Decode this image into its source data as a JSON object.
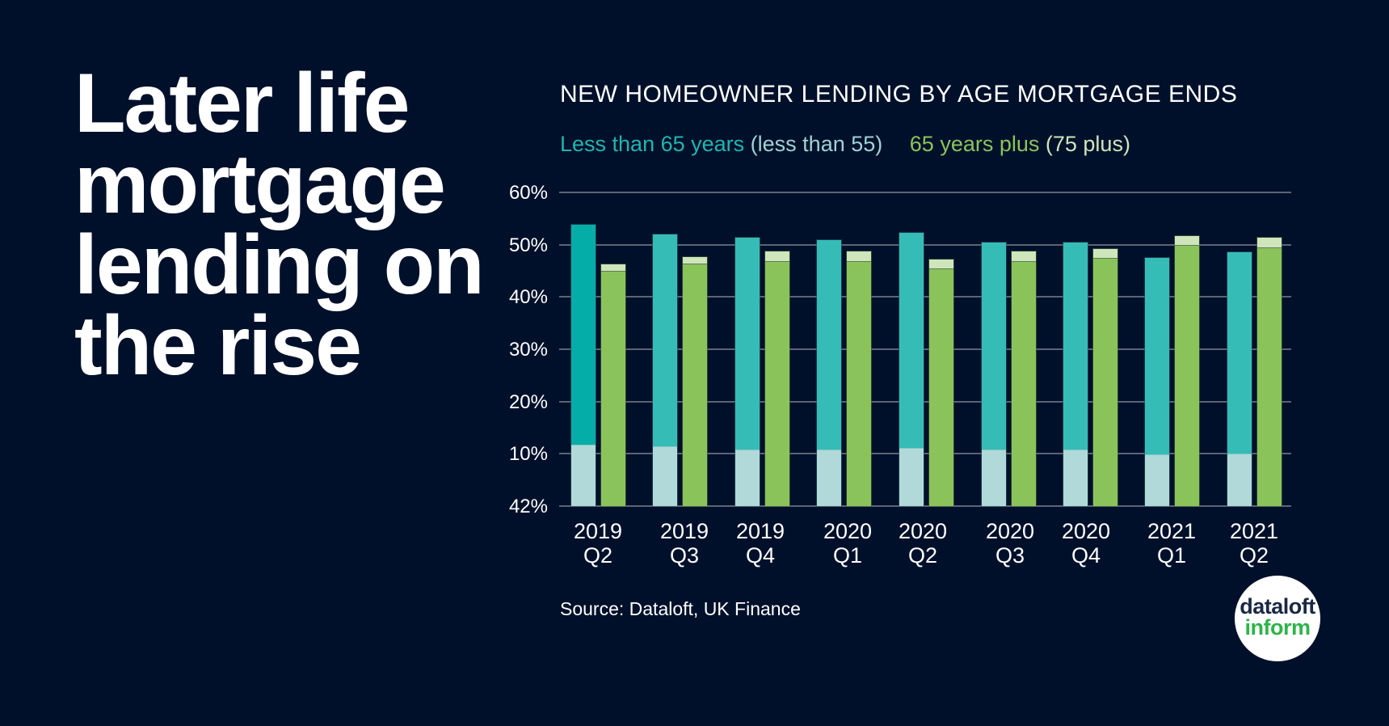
{
  "headline": {
    "lines": [
      "Later life",
      "mortgage",
      "lending on",
      "the rise"
    ]
  },
  "chart": {
    "title": "NEW HOMEOWNER LENDING BY AGE MORTGAGE ENDS",
    "legend": [
      {
        "label": "Less than 65 years",
        "color": "#20b5b0"
      },
      {
        "label": "(less than 55)",
        "color": "#9fd3d3"
      },
      {
        "label": "65 years plus",
        "color": "#8bc35b"
      },
      {
        "label": "(75 plus)",
        "color": "#cfe5bb"
      }
    ],
    "y_ticks": [
      "60%",
      "50%",
      "40%",
      "30%",
      "20%",
      "10%",
      "42%"
    ],
    "x_labels": [
      {
        "year": "2019",
        "q": "Q2"
      },
      {
        "year": "2019",
        "q": "Q3"
      },
      {
        "year": "2019",
        "q": "Q4"
      },
      {
        "year": "2020",
        "q": "Q1"
      },
      {
        "year": "2020",
        "q": "Q2"
      },
      {
        "year": "2020",
        "q": "Q3"
      },
      {
        "year": "2020",
        "q": "Q4"
      },
      {
        "year": "2021",
        "q": "Q1"
      },
      {
        "year": "2021",
        "q": "Q2"
      }
    ],
    "source": "Source: Dataloft, UK Finance"
  },
  "logo": {
    "line1": "dataloft",
    "line2": "inform"
  },
  "colors": {
    "background": "#00102a",
    "teal_first": "#05ada8",
    "teal": "#36bcb7",
    "light_teal": "#b1d9d9",
    "green": "#8bc35b",
    "light_green": "#cfe5bb",
    "grid": "#5d6375"
  },
  "chart_data": {
    "type": "bar",
    "title": "NEW HOMEOWNER LENDING BY AGE MORTGAGE ENDS",
    "xlabel": "",
    "ylabel": "",
    "ylim": [
      0,
      60
    ],
    "y_tick_labels": [
      "42%",
      "10%",
      "20%",
      "30%",
      "40%",
      "50%",
      "60%"
    ],
    "grid": true,
    "legend_position": "top",
    "stacked_note": "Paired stacked bars per quarter: teal bar = Less than 65 years (lighter bottom segment = less than 55); green bar = 65 years plus (lighter top segment = 75 plus)",
    "categories": [
      "2019 Q2",
      "2019 Q3",
      "2019 Q4",
      "2020 Q1",
      "2020 Q2",
      "2020 Q3",
      "2020 Q4",
      "2021 Q1",
      "2021 Q2"
    ],
    "series": [
      {
        "name": "Less than 65 years (total)",
        "values": [
          53.8,
          51.9,
          51.3,
          50.8,
          52.2,
          50.4,
          50.4,
          47.4,
          48.5
        ]
      },
      {
        "name": "(less than 55)",
        "values": [
          11.8,
          11.4,
          10.8,
          10.8,
          11.2,
          10.8,
          10.8,
          9.9,
          10.0
        ]
      },
      {
        "name": "65 years plus (total)",
        "values": [
          46.2,
          47.6,
          48.7,
          48.7,
          47.1,
          48.7,
          49.1,
          51.6,
          51.3
        ]
      },
      {
        "name": "(75 plus)",
        "values": [
          1.4,
          1.4,
          2.0,
          2.0,
          1.8,
          2.0,
          1.8,
          1.8,
          2.0
        ]
      }
    ]
  }
}
